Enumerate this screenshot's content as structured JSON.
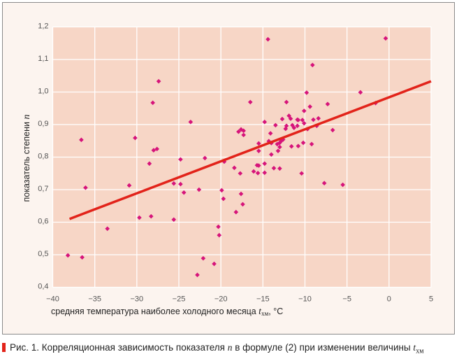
{
  "chart_data": {
    "type": "scatter",
    "xlabel": "средняя температура наиболее холодного месяца t_хм, °С",
    "xlabel_parts": {
      "text": "средняя температура наиболее холодного месяца ",
      "var": "t",
      "sub": "хм",
      "unit": ", °С"
    },
    "ylabel": "показатель степени n",
    "ylabel_parts": {
      "text": "показатель степени ",
      "var": "n"
    },
    "xlim": [
      -40,
      5
    ],
    "ylim": [
      0.4,
      1.2
    ],
    "x_ticks": [
      -40,
      -35,
      -30,
      -25,
      -20,
      -15,
      -10,
      -5,
      0,
      5
    ],
    "x_tick_labels": [
      "−40",
      "−35",
      "−30",
      "−25",
      "−20",
      "−15",
      "−10",
      "−5",
      "0",
      "5"
    ],
    "y_ticks": [
      0.4,
      0.5,
      0.6,
      0.7,
      0.8,
      0.9,
      1.0,
      1.1,
      1.2
    ],
    "y_tick_labels": [
      "0,4",
      "0,5",
      "0,6",
      "0,7",
      "0,8",
      "0,9",
      "1,0",
      "1,1",
      "1,2"
    ],
    "grid": true,
    "colors": {
      "points": "#d6147a",
      "trend": "#e2231a",
      "plot_bg": "#f7d6c6",
      "grid": "#ffffff",
      "frame_bg": "#fcf4ef"
    },
    "points": [
      [
        -38.2,
        0.498
      ],
      [
        -36.6,
        0.853
      ],
      [
        -36.5,
        0.492
      ],
      [
        -36.1,
        0.706
      ],
      [
        -33.5,
        0.58
      ],
      [
        -30.9,
        0.713
      ],
      [
        -30.2,
        0.859
      ],
      [
        -29.7,
        0.614
      ],
      [
        -28.5,
        0.78
      ],
      [
        -28.3,
        0.618
      ],
      [
        -28.1,
        0.967
      ],
      [
        -28.0,
        0.821
      ],
      [
        -27.6,
        0.825
      ],
      [
        -27.4,
        1.033
      ],
      [
        -25.6,
        0.719
      ],
      [
        -25.6,
        0.608
      ],
      [
        -24.8,
        0.793
      ],
      [
        -24.8,
        0.717
      ],
      [
        -24.4,
        0.691
      ],
      [
        -23.6,
        0.908
      ],
      [
        -22.6,
        0.7
      ],
      [
        -22.8,
        0.438
      ],
      [
        -22.1,
        0.489
      ],
      [
        -21.9,
        0.797
      ],
      [
        -20.8,
        0.472
      ],
      [
        -20.3,
        0.586
      ],
      [
        -20.2,
        0.56
      ],
      [
        -19.9,
        0.698
      ],
      [
        -19.7,
        0.672
      ],
      [
        -19.6,
        0.786
      ],
      [
        -18.4,
        0.767
      ],
      [
        -18.2,
        0.631
      ],
      [
        -17.9,
        0.878
      ],
      [
        -17.7,
        0.75
      ],
      [
        -17.6,
        0.687
      ],
      [
        -17.4,
        0.655
      ],
      [
        -17.6,
        0.885
      ],
      [
        -17.3,
        0.881
      ],
      [
        -17.3,
        0.868
      ],
      [
        -16.5,
        0.969
      ],
      [
        -14.4,
        1.162
      ],
      [
        -0.4,
        1.165
      ],
      [
        -9.1,
        1.083
      ],
      [
        -9.8,
        0.998
      ],
      [
        -3.4,
        0.999
      ],
      [
        -1.6,
        0.966
      ],
      [
        -12.2,
        0.969
      ],
      [
        -9.4,
        0.955
      ],
      [
        -7.3,
        0.963
      ],
      [
        -14.8,
        0.908
      ],
      [
        -12.7,
        0.917
      ],
      [
        -11.9,
        0.927
      ],
      [
        -11.7,
        0.918
      ],
      [
        -10.9,
        0.915
      ],
      [
        -10.8,
        0.914
      ],
      [
        -10.3,
        0.914
      ],
      [
        -10.1,
        0.942
      ],
      [
        -9.0,
        0.915
      ],
      [
        -8.4,
        0.919
      ],
      [
        -13.5,
        0.898
      ],
      [
        -12.2,
        0.896
      ],
      [
        -12.3,
        0.887
      ],
      [
        -11.5,
        0.898
      ],
      [
        -11.3,
        0.89
      ],
      [
        -10.9,
        0.896
      ],
      [
        -10.1,
        0.904
      ],
      [
        -8.6,
        0.896
      ],
      [
        -9.7,
        0.886
      ],
      [
        -6.7,
        0.883
      ],
      [
        -14.1,
        0.873
      ],
      [
        -14.3,
        0.849
      ],
      [
        -14.0,
        0.843
      ],
      [
        -15.5,
        0.842
      ],
      [
        -13.3,
        0.84
      ],
      [
        -13.0,
        0.844
      ],
      [
        -12.8,
        0.85
      ],
      [
        -12.6,
        0.854
      ],
      [
        -13.0,
        0.831
      ],
      [
        -13.2,
        0.819
      ],
      [
        -15.5,
        0.819
      ],
      [
        -14.0,
        0.808
      ],
      [
        -11.6,
        0.833
      ],
      [
        -10.8,
        0.834
      ],
      [
        -10.2,
        0.844
      ],
      [
        -9.2,
        0.84
      ],
      [
        -15.7,
        0.775
      ],
      [
        -15.5,
        0.774
      ],
      [
        -14.8,
        0.78
      ],
      [
        -16.1,
        0.756
      ],
      [
        -15.6,
        0.751
      ],
      [
        -14.8,
        0.752
      ],
      [
        -13.7,
        0.766
      ],
      [
        -13.0,
        0.765
      ],
      [
        -10.4,
        0.75
      ],
      [
        -7.7,
        0.72
      ],
      [
        -5.5,
        0.715
      ]
    ],
    "trend_line": {
      "x": [
        -38,
        5
      ],
      "y": [
        0.61,
        1.033
      ]
    }
  },
  "caption": {
    "text": "Рис. 1. Корреляционная зависимость показателя ",
    "var_n": "n",
    "middle": " в формуле (2) при изменении величины ",
    "var_t": "t",
    "sub": "хм"
  }
}
